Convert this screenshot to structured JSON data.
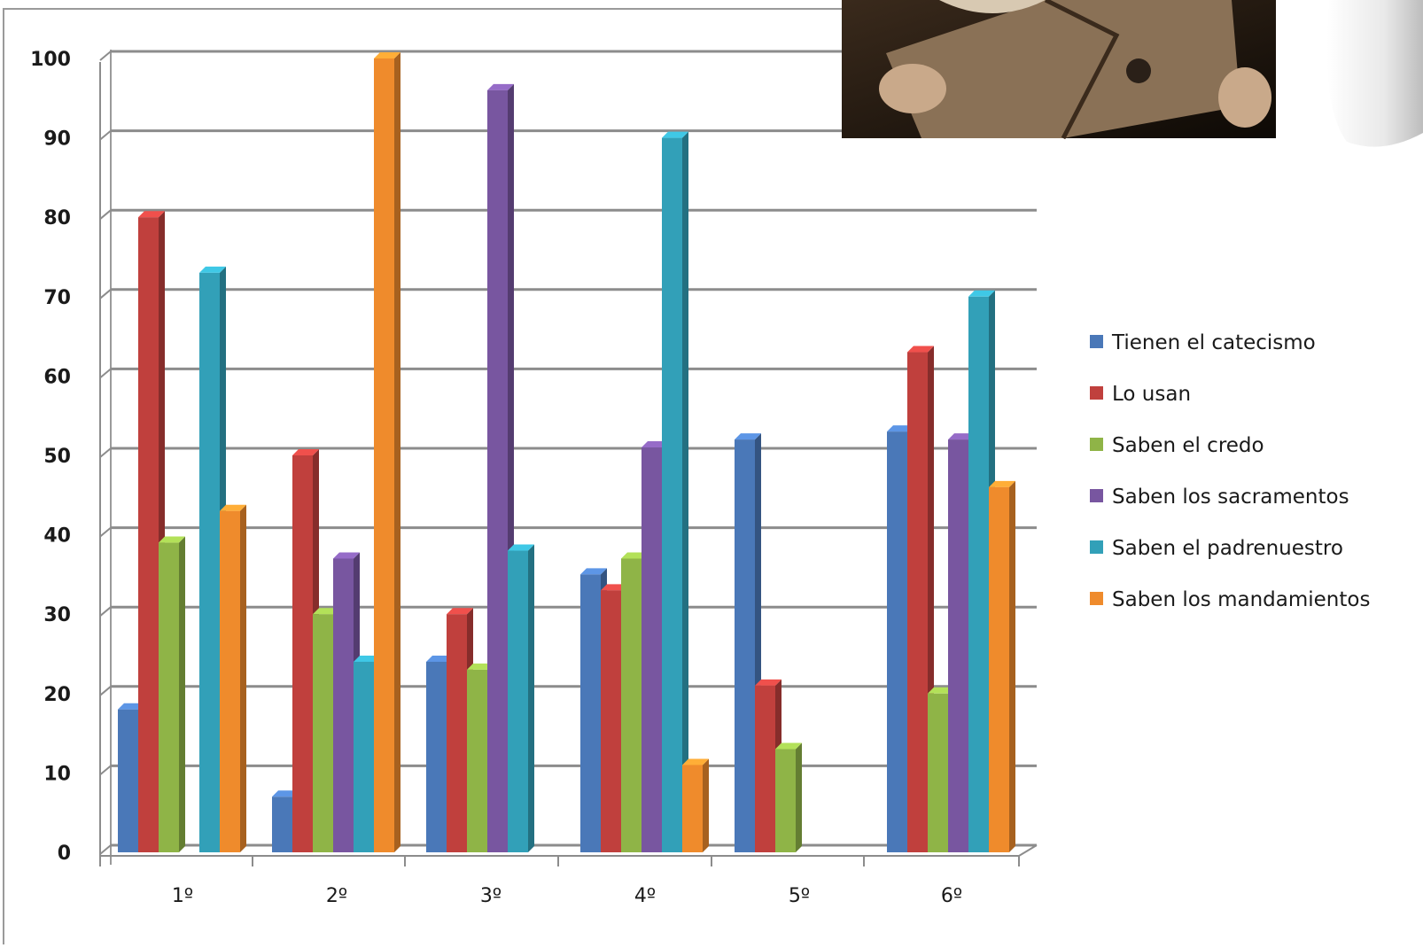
{
  "chart_data": {
    "type": "bar",
    "style": "3d-clustered-column",
    "categories": [
      "1º",
      "2º",
      "3º",
      "4º",
      "5º",
      "6º"
    ],
    "series": [
      {
        "name": "Tienen el catecismo",
        "color": "#4a78b8",
        "values": [
          18,
          7,
          24,
          35,
          52,
          53
        ]
      },
      {
        "name": "Lo usan",
        "color": "#c0403d",
        "values": [
          80,
          50,
          30,
          33,
          21,
          63
        ]
      },
      {
        "name": "Saben el credo",
        "color": "#8fb447",
        "values": [
          39,
          30,
          23,
          37,
          13,
          20
        ]
      },
      {
        "name": "Saben los sacramentos",
        "color": "#7856a0",
        "values": [
          0,
          37,
          96,
          51,
          0,
          52
        ]
      },
      {
        "name": "Saben el padrenuestro",
        "color": "#32a0b8",
        "values": [
          73,
          24,
          38,
          90,
          0,
          70
        ]
      },
      {
        "name": "Saben los mandamientos",
        "color": "#ef8b2c",
        "values": [
          43,
          100,
          0,
          11,
          0,
          46
        ]
      }
    ],
    "yticks": [
      "0",
      "10",
      "20",
      "30",
      "40",
      "50",
      "60",
      "70",
      "80",
      "90",
      "100"
    ],
    "ylim": [
      0,
      100
    ],
    "grid": true,
    "legend_position": "right"
  },
  "decor": {
    "photo_icon": "child-reading-book-photo",
    "corner_icon": "page-curl-icon"
  }
}
